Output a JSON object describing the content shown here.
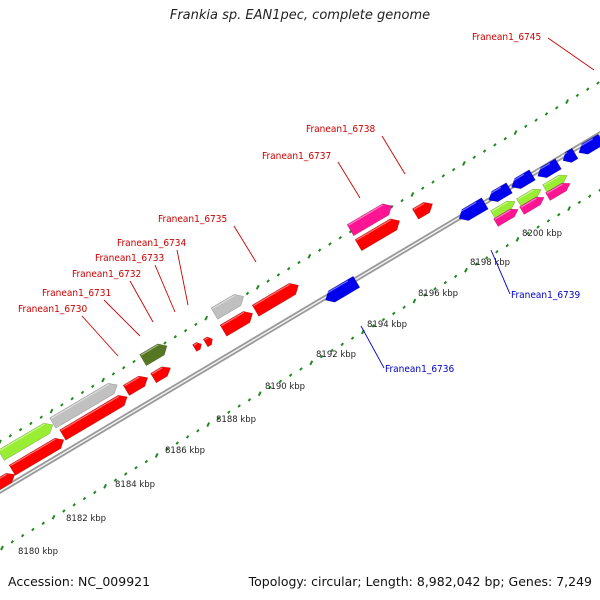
{
  "title": "Frankia sp. EAN1pec, complete genome",
  "footer": {
    "accession": "Accession: NC_009921",
    "summary": "Topology: circular; Length: 8,982,042 bp; Genes: 7,249"
  },
  "colors": {
    "forward_cds": "#ff0000",
    "reverse_cds": "#0000ee",
    "pseudogene": "#c0c0c0",
    "rna": "#ff1493",
    "lime": "#99ee33",
    "olive": "#557722",
    "tick": "#228822",
    "backbone": "#777777",
    "label_forward": "#cc0000",
    "label_reverse": "#0000cc"
  },
  "scale_labels": [
    "8180 kbp",
    "8182 kbp",
    "8184 kbp",
    "8186 kbp",
    "8188 kbp",
    "8190 kbp",
    "8192 kbp",
    "8194 kbp",
    "8196 kbp",
    "8198 kbp",
    "8200 kbp"
  ],
  "gene_labels": [
    {
      "text": "Franean1_6745",
      "strand": "forward"
    },
    {
      "text": "Franean1_6738",
      "strand": "forward"
    },
    {
      "text": "Franean1_6737",
      "strand": "forward"
    },
    {
      "text": "Franean1_6735",
      "strand": "forward"
    },
    {
      "text": "Franean1_6734",
      "strand": "forward"
    },
    {
      "text": "Franean1_6733",
      "strand": "forward"
    },
    {
      "text": "Franean1_6732",
      "strand": "forward"
    },
    {
      "text": "Franean1_6731",
      "strand": "forward"
    },
    {
      "text": "Franean1_6730",
      "strand": "forward"
    },
    {
      "text": "Franean1_6739",
      "strand": "reverse"
    },
    {
      "text": "Franean1_6736",
      "strand": "reverse"
    }
  ]
}
